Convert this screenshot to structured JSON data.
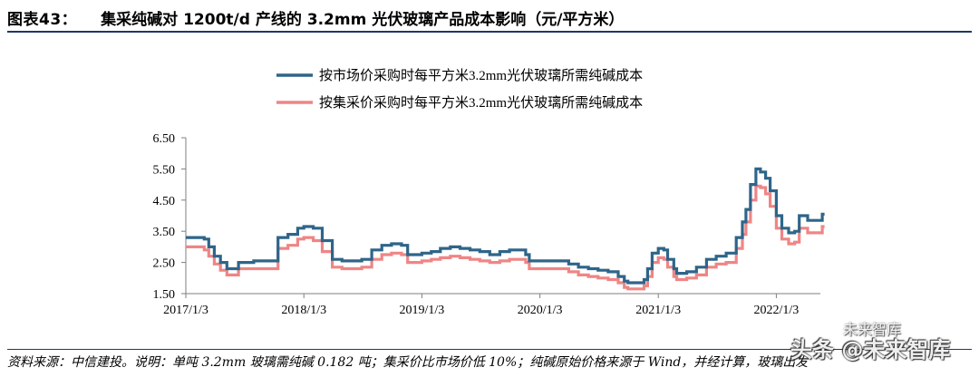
{
  "header": {
    "figure_label": "图表43：",
    "title": "集采纯碱对 1200t/d 产线的 3.2mm 光伏玻璃产品成本影响（元/平方米）"
  },
  "footer": {
    "source": "资料来源：中信建投。说明：单吨 3.2mm 玻璃需纯碱 0.182 吨；集采价比市场价低 10%；纯碱原始价格来源于 Wind，并经计算，玻璃出发"
  },
  "watermark": {
    "brand": "未来智库",
    "account": "头条 @未来智库"
  },
  "colors": {
    "market_line": "#2e6589",
    "collective_line": "#ef8585",
    "axis": "#7f7f7f"
  },
  "chart_data": {
    "type": "line",
    "title": "",
    "xlabel": "",
    "ylabel": "",
    "ylim": [
      1.5,
      6.5
    ],
    "yticks": [
      "6.50",
      "5.50",
      "4.50",
      "3.50",
      "2.50",
      "1.50"
    ],
    "xticks": [
      "2017/1/3",
      "2018/1/3",
      "2019/1/3",
      "2020/1/3",
      "2021/1/3",
      "2022/1/3"
    ],
    "grid": false,
    "legend_position": "top-center",
    "series": [
      {
        "name": "按市场价采购时每平方米3.2mm光伏玻璃所需纯碱成本",
        "color": "#2e6589",
        "points": [
          [
            "2017-01-03",
            3.3
          ],
          [
            "2017-02-05",
            3.3
          ],
          [
            "2017-03-01",
            3.25
          ],
          [
            "2017-03-15",
            3.0
          ],
          [
            "2017-04-01",
            2.7
          ],
          [
            "2017-04-20",
            2.5
          ],
          [
            "2017-05-10",
            2.3
          ],
          [
            "2017-06-01",
            2.3
          ],
          [
            "2017-06-15",
            2.5
          ],
          [
            "2017-08-01",
            2.55
          ],
          [
            "2017-10-01",
            2.55
          ],
          [
            "2017-10-15",
            3.3
          ],
          [
            "2017-11-15",
            3.4
          ],
          [
            "2017-12-15",
            3.6
          ],
          [
            "2018-01-03",
            3.65
          ],
          [
            "2018-02-01",
            3.6
          ],
          [
            "2018-03-01",
            3.2
          ],
          [
            "2018-04-01",
            2.6
          ],
          [
            "2018-05-01",
            2.55
          ],
          [
            "2018-06-01",
            2.55
          ],
          [
            "2018-07-01",
            2.6
          ],
          [
            "2018-08-01",
            2.9
          ],
          [
            "2018-09-01",
            3.05
          ],
          [
            "2018-10-01",
            3.1
          ],
          [
            "2018-11-01",
            3.05
          ],
          [
            "2018-11-20",
            2.75
          ],
          [
            "2018-12-20",
            2.75
          ],
          [
            "2019-01-03",
            2.8
          ],
          [
            "2019-02-01",
            2.85
          ],
          [
            "2019-03-01",
            2.95
          ],
          [
            "2019-04-01",
            3.0
          ],
          [
            "2019-05-01",
            2.95
          ],
          [
            "2019-06-01",
            2.9
          ],
          [
            "2019-07-01",
            2.85
          ],
          [
            "2019-08-01",
            2.75
          ],
          [
            "2019-09-01",
            2.85
          ],
          [
            "2019-10-01",
            2.9
          ],
          [
            "2019-11-01",
            2.9
          ],
          [
            "2019-11-20",
            2.75
          ],
          [
            "2019-12-01",
            2.55
          ],
          [
            "2020-01-03",
            2.55
          ],
          [
            "2020-03-01",
            2.55
          ],
          [
            "2020-04-01",
            2.45
          ],
          [
            "2020-05-01",
            2.35
          ],
          [
            "2020-06-01",
            2.3
          ],
          [
            "2020-07-01",
            2.25
          ],
          [
            "2020-08-01",
            2.2
          ],
          [
            "2020-09-01",
            2.05
          ],
          [
            "2020-09-20",
            1.9
          ],
          [
            "2020-10-01",
            1.85
          ],
          [
            "2020-11-01",
            1.85
          ],
          [
            "2020-11-20",
            1.95
          ],
          [
            "2020-12-01",
            2.3
          ],
          [
            "2020-12-15",
            2.8
          ],
          [
            "2021-01-03",
            2.95
          ],
          [
            "2021-01-20",
            2.9
          ],
          [
            "2021-02-01",
            2.6
          ],
          [
            "2021-02-20",
            2.3
          ],
          [
            "2021-03-01",
            2.15
          ],
          [
            "2021-04-01",
            2.2
          ],
          [
            "2021-05-01",
            2.35
          ],
          [
            "2021-06-01",
            2.6
          ],
          [
            "2021-07-01",
            2.7
          ],
          [
            "2021-08-01",
            2.8
          ],
          [
            "2021-09-01",
            3.3
          ],
          [
            "2021-09-20",
            3.8
          ],
          [
            "2021-10-01",
            4.2
          ],
          [
            "2021-10-15",
            5.0
          ],
          [
            "2021-11-01",
            5.5
          ],
          [
            "2021-11-15",
            5.4
          ],
          [
            "2021-12-01",
            5.2
          ],
          [
            "2021-12-15",
            4.8
          ],
          [
            "2022-01-03",
            4.0
          ],
          [
            "2022-01-20",
            3.6
          ],
          [
            "2022-02-10",
            3.45
          ],
          [
            "2022-03-01",
            3.5
          ],
          [
            "2022-03-15",
            4.0
          ],
          [
            "2022-04-10",
            3.85
          ],
          [
            "2022-05-10",
            3.85
          ],
          [
            "2022-05-25",
            4.05
          ],
          [
            "2022-06-01",
            4.05
          ]
        ]
      },
      {
        "name": "按集采价采购时每平方米3.2mm光伏玻璃所需纯碱成本",
        "color": "#ef8585",
        "points": [
          [
            "2017-01-03",
            3.0
          ],
          [
            "2017-02-05",
            3.0
          ],
          [
            "2017-03-01",
            2.9
          ],
          [
            "2017-03-15",
            2.7
          ],
          [
            "2017-04-01",
            2.45
          ],
          [
            "2017-04-20",
            2.25
          ],
          [
            "2017-05-10",
            2.1
          ],
          [
            "2017-06-01",
            2.1
          ],
          [
            "2017-06-15",
            2.3
          ],
          [
            "2017-08-01",
            2.3
          ],
          [
            "2017-10-01",
            2.3
          ],
          [
            "2017-10-15",
            2.95
          ],
          [
            "2017-11-15",
            3.05
          ],
          [
            "2017-12-15",
            3.25
          ],
          [
            "2018-01-03",
            3.3
          ],
          [
            "2018-02-01",
            3.2
          ],
          [
            "2018-03-01",
            2.85
          ],
          [
            "2018-04-01",
            2.35
          ],
          [
            "2018-05-01",
            2.3
          ],
          [
            "2018-06-01",
            2.3
          ],
          [
            "2018-07-01",
            2.35
          ],
          [
            "2018-08-01",
            2.6
          ],
          [
            "2018-09-01",
            2.75
          ],
          [
            "2018-10-01",
            2.8
          ],
          [
            "2018-11-01",
            2.75
          ],
          [
            "2018-11-20",
            2.5
          ],
          [
            "2018-12-20",
            2.5
          ],
          [
            "2019-01-03",
            2.55
          ],
          [
            "2019-02-01",
            2.6
          ],
          [
            "2019-03-01",
            2.65
          ],
          [
            "2019-04-01",
            2.7
          ],
          [
            "2019-05-01",
            2.65
          ],
          [
            "2019-06-01",
            2.6
          ],
          [
            "2019-07-01",
            2.55
          ],
          [
            "2019-08-01",
            2.5
          ],
          [
            "2019-09-01",
            2.55
          ],
          [
            "2019-10-01",
            2.6
          ],
          [
            "2019-11-01",
            2.6
          ],
          [
            "2019-11-20",
            2.5
          ],
          [
            "2019-12-01",
            2.3
          ],
          [
            "2020-01-03",
            2.3
          ],
          [
            "2020-03-01",
            2.3
          ],
          [
            "2020-04-01",
            2.2
          ],
          [
            "2020-05-01",
            2.1
          ],
          [
            "2020-06-01",
            2.05
          ],
          [
            "2020-07-01",
            2.0
          ],
          [
            "2020-08-01",
            1.95
          ],
          [
            "2020-09-01",
            1.85
          ],
          [
            "2020-09-20",
            1.7
          ],
          [
            "2020-10-01",
            1.65
          ],
          [
            "2020-11-01",
            1.65
          ],
          [
            "2020-11-20",
            1.75
          ],
          [
            "2020-12-01",
            2.05
          ],
          [
            "2020-12-15",
            2.5
          ],
          [
            "2021-01-03",
            2.65
          ],
          [
            "2021-01-20",
            2.6
          ],
          [
            "2021-02-01",
            2.35
          ],
          [
            "2021-02-20",
            2.05
          ],
          [
            "2021-03-01",
            1.95
          ],
          [
            "2021-04-01",
            2.0
          ],
          [
            "2021-05-01",
            2.1
          ],
          [
            "2021-06-01",
            2.35
          ],
          [
            "2021-07-01",
            2.45
          ],
          [
            "2021-08-01",
            2.5
          ],
          [
            "2021-09-01",
            2.95
          ],
          [
            "2021-09-20",
            3.4
          ],
          [
            "2021-10-01",
            3.8
          ],
          [
            "2021-10-15",
            4.5
          ],
          [
            "2021-11-01",
            4.95
          ],
          [
            "2021-11-15",
            4.9
          ],
          [
            "2021-12-01",
            4.7
          ],
          [
            "2021-12-15",
            4.3
          ],
          [
            "2022-01-03",
            3.6
          ],
          [
            "2022-01-20",
            3.25
          ],
          [
            "2022-02-10",
            3.1
          ],
          [
            "2022-03-01",
            3.15
          ],
          [
            "2022-03-15",
            3.6
          ],
          [
            "2022-04-10",
            3.45
          ],
          [
            "2022-05-10",
            3.45
          ],
          [
            "2022-05-25",
            3.65
          ],
          [
            "2022-06-01",
            3.65
          ]
        ]
      }
    ]
  }
}
